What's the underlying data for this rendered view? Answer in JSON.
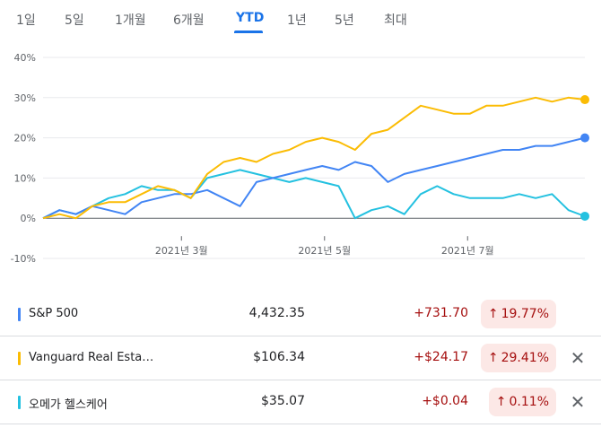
{
  "tabs": [
    "1일",
    "5일",
    "1개월",
    "6개월",
    "YTD",
    "1년",
    "5년",
    "최대"
  ],
  "active_tab": "YTD",
  "colors": {
    "sp500": "#4285f4",
    "vanguard": "#fbbc04",
    "omega": "#24c1e0",
    "accent": "#1a73e8",
    "negative_bg": "#fce8e6",
    "negative": "#a50e0e"
  },
  "chart_data": {
    "type": "line",
    "x": [
      "2021-01-01",
      "2021-01-08",
      "2021-01-15",
      "2021-01-22",
      "2021-01-29",
      "2021-02-05",
      "2021-02-12",
      "2021-02-19",
      "2021-02-26",
      "2021-03-05",
      "2021-03-12",
      "2021-03-19",
      "2021-03-26",
      "2021-04-02",
      "2021-04-09",
      "2021-04-16",
      "2021-04-23",
      "2021-04-30",
      "2021-05-07",
      "2021-05-14",
      "2021-05-21",
      "2021-05-28",
      "2021-06-04",
      "2021-06-11",
      "2021-06-18",
      "2021-06-25",
      "2021-07-02",
      "2021-07-09",
      "2021-07-16",
      "2021-07-23",
      "2021-07-30",
      "2021-08-06",
      "2021-08-13",
      "2021-08-20"
    ],
    "series": [
      {
        "values": [
          0,
          2,
          1,
          3,
          2,
          1,
          4,
          5,
          6,
          6,
          7,
          5,
          3,
          9,
          10,
          11,
          12,
          13,
          12,
          14,
          13,
          9,
          11,
          12,
          13,
          14,
          15,
          16,
          17,
          17,
          18,
          18,
          19,
          20
        ]
      },
      {
        "values": [
          0,
          1,
          0,
          3,
          4,
          4,
          6,
          8,
          7,
          5,
          11,
          14,
          15,
          14,
          16,
          17,
          19,
          20,
          19,
          17,
          21,
          22,
          25,
          28,
          27,
          26,
          26,
          28,
          28,
          29,
          30,
          29,
          30,
          29.5
        ]
      },
      {
        "values": [
          0,
          2,
          1,
          3,
          5,
          6,
          8,
          7,
          7,
          5,
          10,
          11,
          12,
          11,
          10,
          9,
          10,
          9,
          8,
          0,
          2,
          3,
          1,
          6,
          8,
          6,
          5,
          5,
          5,
          6,
          5,
          6,
          2,
          0.5
        ]
      }
    ],
    "y_ticks": [
      "40%",
      "30%",
      "20%",
      "10%",
      "0%",
      "-10%"
    ],
    "ylim": [
      -10,
      40
    ],
    "x_ticks": [
      {
        "label": "2021년 3월",
        "date": "2021-03-01"
      },
      {
        "label": "2021년 5월",
        "date": "2021-05-01"
      },
      {
        "label": "2021년 7월",
        "date": "2021-07-01"
      }
    ],
    "grid": true
  },
  "rows": [
    {
      "name": "S&P 500",
      "price": "4,432.35",
      "change": "+731.70",
      "pct": "19.77%",
      "color": "#4285f4",
      "removable": false
    },
    {
      "name": "Vanguard Real Esta…",
      "price": "$106.34",
      "change": "+$24.17",
      "pct": "29.41%",
      "color": "#fbbc04",
      "removable": true
    },
    {
      "name": "오메가 헬스케어",
      "price": "$35.07",
      "change": "+$0.04",
      "pct": "0.11%",
      "color": "#24c1e0",
      "removable": true
    }
  ],
  "icons": {
    "up_arrow": "↑",
    "close": "✕"
  }
}
